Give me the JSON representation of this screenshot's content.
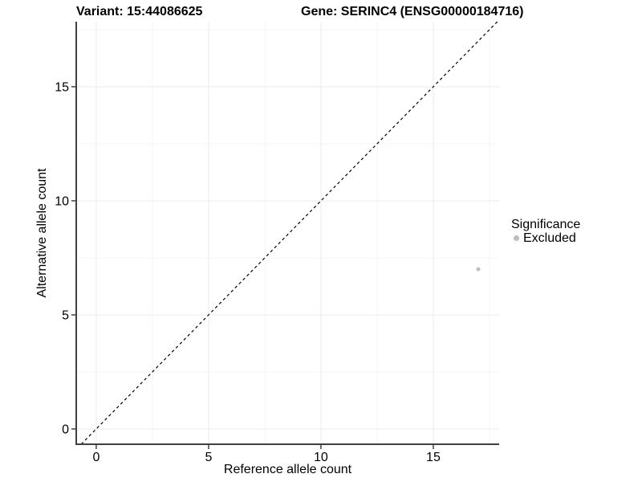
{
  "chart_data": {
    "type": "scatter",
    "title_left": "Variant: 15:44086625",
    "title_right": "Gene: SERINC4 (ENSG00000184716)",
    "xlabel": "Reference allele count",
    "ylabel": "Alternative allele count",
    "xlim": [
      -0.89,
      17.93
    ],
    "ylim": [
      -0.67,
      17.85
    ],
    "x_ticks": [
      0,
      5,
      10,
      15
    ],
    "y_ticks": [
      0,
      5,
      10,
      15
    ],
    "x_minor_ticks": [
      2.5,
      7.5,
      12.5,
      17.5
    ],
    "y_minor_ticks": [
      2.5,
      7.5,
      12.5,
      17.5
    ],
    "grid": "major and minor, on white panel",
    "series": [
      {
        "name": "Excluded",
        "color": "#bebebe",
        "points": [
          {
            "x": 17,
            "y": 7
          }
        ]
      }
    ],
    "reference_line": {
      "type": "abline",
      "slope": 1,
      "intercept": 0,
      "style": "dashed",
      "color": "#000000"
    },
    "legend": {
      "title": "Significance",
      "position": "right",
      "entries": [
        {
          "label": "Excluded",
          "color": "#bebebe"
        }
      ]
    },
    "colors": {
      "axis_line": "#404040",
      "tick_mark": "#333333",
      "tick_label": "#000000",
      "grid_major": "#ebebeb",
      "grid_minor": "#f5f5f5",
      "panel_background": "#ffffff"
    }
  }
}
